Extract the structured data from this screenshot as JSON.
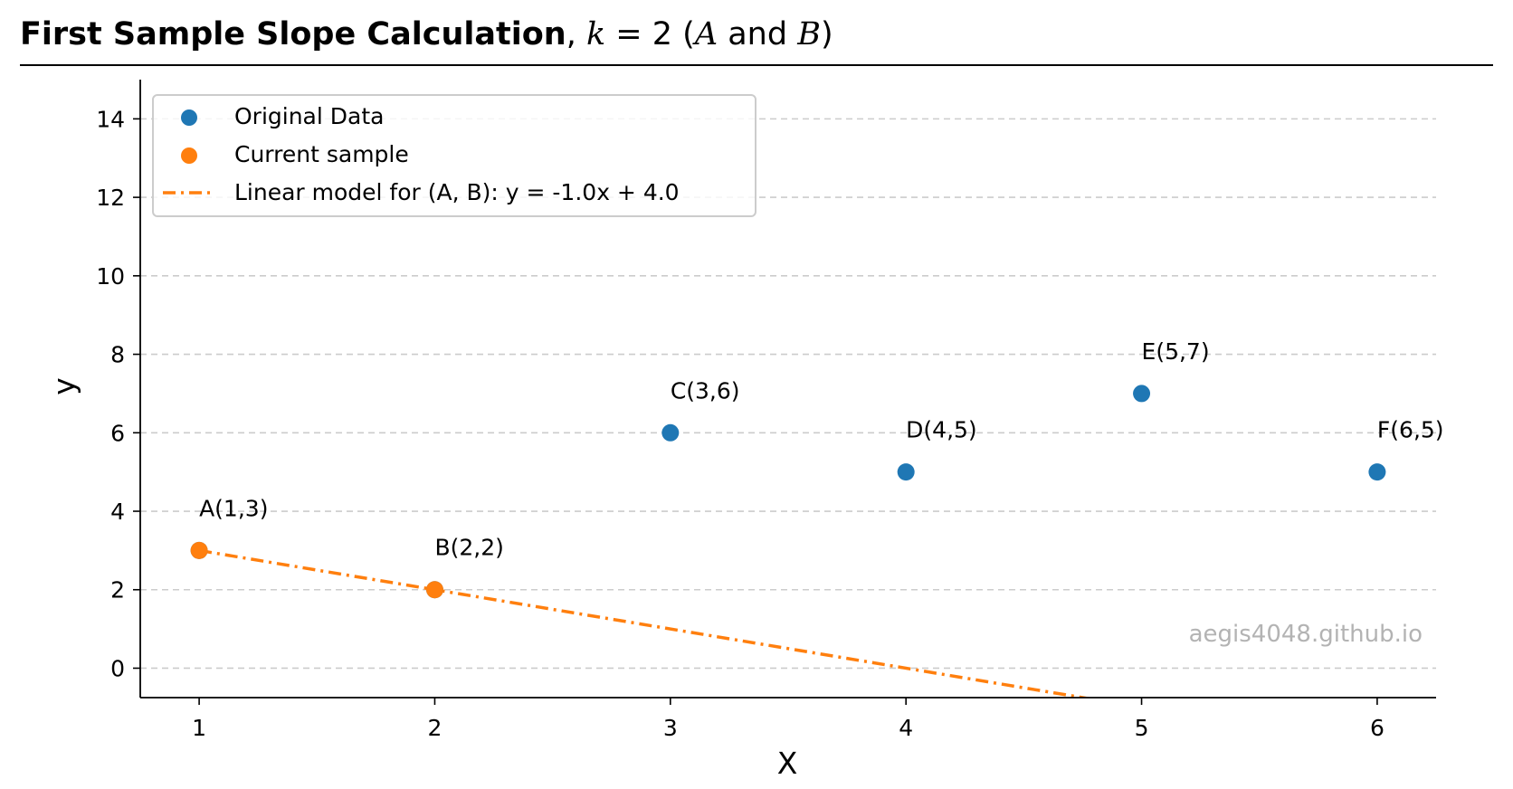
{
  "colors": {
    "original": "#1f77b4",
    "sample": "#ff7f0e",
    "model_line": "#ff7f0e",
    "grid": "#cccccc",
    "axis": "#000000",
    "watermark": "#b3b3b3",
    "legend_border": "#cccccc"
  },
  "header": {
    "title_bold": "First Sample Slope Calculation",
    "title_sep": ", ",
    "title_k": "k",
    "title_eq": " = 2 (",
    "title_a": "A",
    "title_and": " and ",
    "title_b": "B",
    "title_close": ")"
  },
  "watermark": "aegis4048.github.io",
  "chart_data": {
    "type": "scatter",
    "title": "First Sample Slope Calculation, k = 2 (A and B)",
    "xlabel": "X",
    "ylabel": "y",
    "xlim": [
      0.75,
      6.25
    ],
    "ylim": [
      -0.75,
      15
    ],
    "xticks": [
      1,
      2,
      3,
      4,
      5,
      6
    ],
    "yticks": [
      0,
      2,
      4,
      6,
      8,
      10,
      12,
      14
    ],
    "grid": "y-dashed",
    "legend_position": "upper-left",
    "series": [
      {
        "name": "Original Data",
        "kind": "points",
        "points": [
          {
            "label": "A(1,3)",
            "x": 1,
            "y": 3
          },
          {
            "label": "B(2,2)",
            "x": 2,
            "y": 2
          },
          {
            "label": "C(3,6)",
            "x": 3,
            "y": 6
          },
          {
            "label": "D(4,5)",
            "x": 4,
            "y": 5
          },
          {
            "label": "E(5,7)",
            "x": 5,
            "y": 7
          },
          {
            "label": "F(6,5)",
            "x": 6,
            "y": 5
          }
        ]
      },
      {
        "name": "Current sample",
        "kind": "points",
        "points": [
          {
            "x": 1,
            "y": 3
          },
          {
            "x": 2,
            "y": 2
          }
        ]
      },
      {
        "name": "Linear model for (A, B):  y = -1.0x + 4.0",
        "kind": "line",
        "slope": -1.0,
        "intercept": 4.0
      }
    ]
  }
}
